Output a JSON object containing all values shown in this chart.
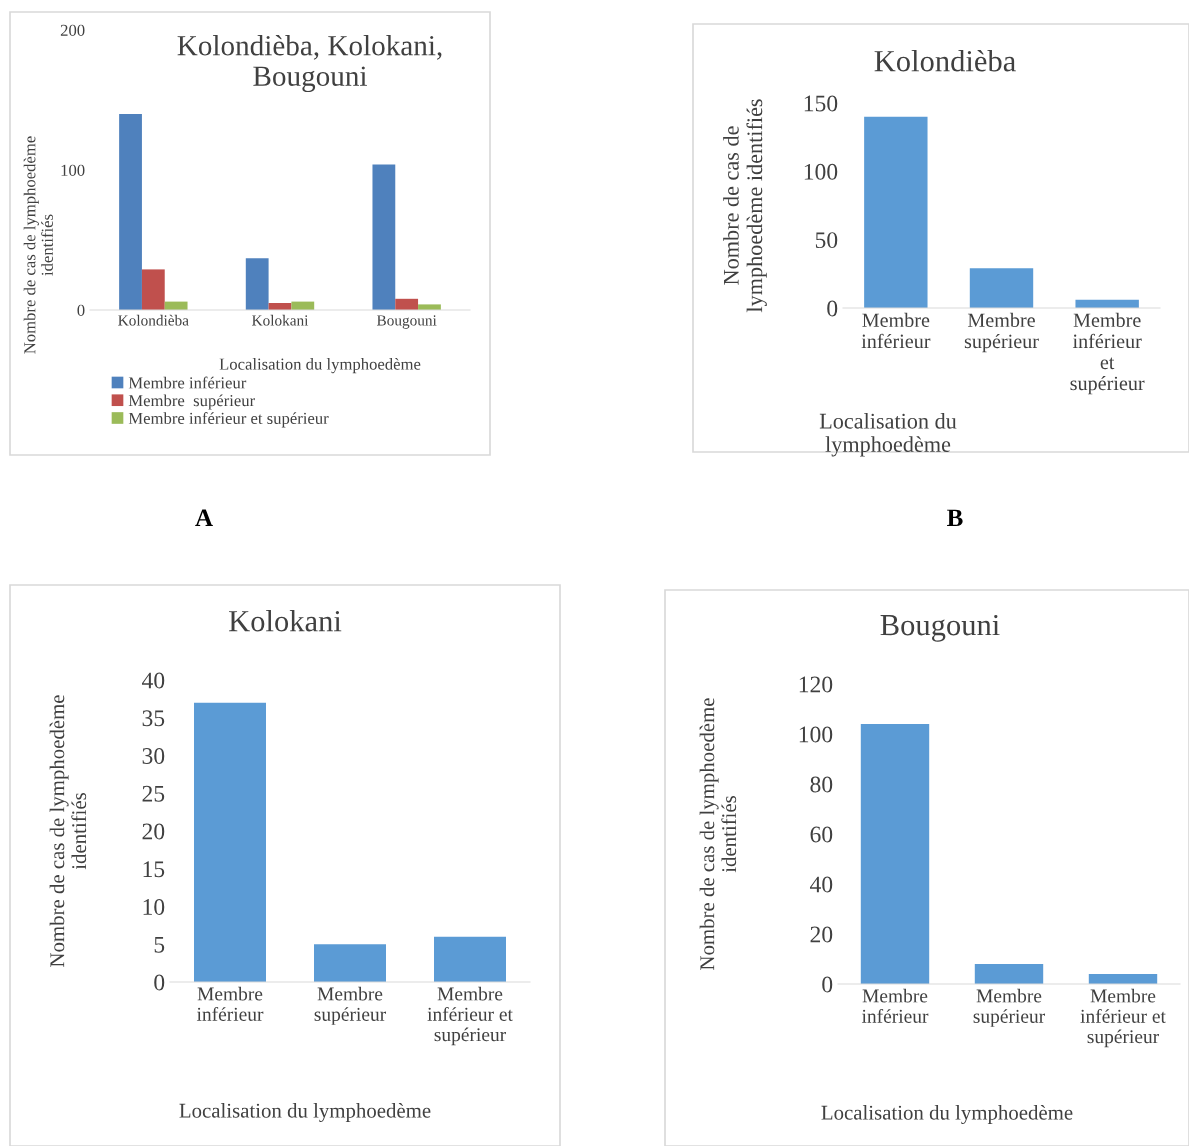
{
  "chart_data": [
    {
      "type": "bar",
      "title": "Kolondièba, Kolokani,\nBougouni",
      "xlabel": "Localisation du lymphoedème",
      "ylabel": "Nombre de cas de lymphoedème\nidentifiés",
      "categories": [
        "Kolondièba",
        "Kolokani",
        "Bougouni"
      ],
      "series": [
        {
          "name": "Membre inférieur",
          "color": "#4f81bd",
          "values": [
            140,
            37,
            104
          ]
        },
        {
          "name": "Membre  supérieur",
          "color": "#c0504d",
          "values": [
            29,
            5,
            8
          ]
        },
        {
          "name": "Membre inférieur et supérieur",
          "color": "#9bbb59",
          "values": [
            6,
            6,
            4
          ]
        }
      ],
      "ylim": [
        0,
        200
      ],
      "yticks": [
        0,
        100,
        200
      ],
      "grid": false,
      "legend": "bottom",
      "annotations": [
        "A"
      ]
    },
    {
      "type": "bar",
      "title": "Kolondièba",
      "xlabel": "Localisation du\nlymphoedème",
      "ylabel": "Nombre de cas de\nlymphoedème identifiés",
      "categories": [
        "Membre\ninférieur",
        "Membre\nsupérieur",
        "Membre\ninférieur\net\nsupérieur"
      ],
      "series": [
        {
          "color": "#5b9bd5",
          "values": [
            140,
            29,
            6
          ]
        }
      ],
      "ylim": [
        0,
        150
      ],
      "yticks": [
        0,
        50,
        100,
        150
      ],
      "grid": false,
      "annotations": [
        "B"
      ]
    },
    {
      "type": "bar",
      "title": "Kolokani",
      "xlabel": "Localisation du lymphoedème",
      "ylabel": "Nombre de cas de lymphoedème\nidentifiés",
      "categories": [
        "Membre\ninférieur",
        "Membre\nsupérieur",
        "Membre\ninférieur et\nsupérieur"
      ],
      "series": [
        {
          "color": "#5b9bd5",
          "values": [
            37,
            5,
            6
          ]
        }
      ],
      "ylim": [
        0,
        40
      ],
      "yticks": [
        0,
        5,
        10,
        15,
        20,
        25,
        30,
        35,
        40
      ],
      "grid": false
    },
    {
      "type": "bar",
      "title": "Bougouni",
      "xlabel": "Localisation du lymphoedème",
      "ylabel": "Nombre de cas de lymphoedème\nidentifiés",
      "categories": [
        "Membre\ninférieur",
        "Membre\nsupérieur",
        "Membre\ninférieur et\nsupérieur"
      ],
      "series": [
        {
          "color": "#5b9bd5",
          "values": [
            104,
            8,
            4
          ]
        }
      ],
      "ylim": [
        0,
        120
      ],
      "yticks": [
        0,
        20,
        40,
        60,
        80,
        100,
        120
      ],
      "grid": false
    }
  ]
}
